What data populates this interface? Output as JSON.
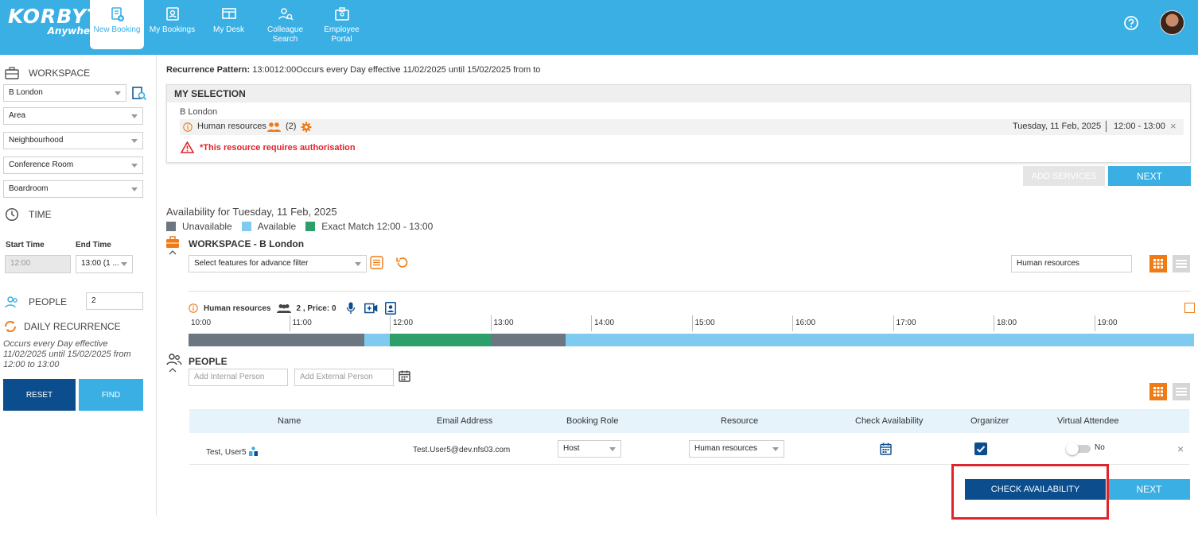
{
  "brand": {
    "name": "KORBYT",
    "sub": "Anywhere"
  },
  "nav": [
    {
      "label": "New Booking",
      "icon": "new-booking-icon"
    },
    {
      "label": "My Bookings",
      "icon": "my-bookings-icon"
    },
    {
      "label": "My Desk",
      "icon": "desk-icon"
    },
    {
      "label": "Colleague Search",
      "icon": "colleague-search-icon"
    },
    {
      "label": "Employee Portal",
      "icon": "employee-portal-icon"
    }
  ],
  "sidebar": {
    "workspace_title": "WORKSPACE",
    "location": "B London",
    "area": "Area",
    "neighbourhood": "Neighbourhood",
    "room_type": "Conference Room",
    "room": "Boardroom",
    "time_title": "TIME",
    "start_label": "Start Time",
    "end_label": "End Time",
    "start_value": "12:00",
    "end_value": "13:00 (1 ...",
    "people_title": "PEOPLE",
    "people_count": "2",
    "recurrence_title": "DAILY RECURRENCE",
    "recurrence_text": "Occurs every Day effective 11/02/2025 until 15/02/2025 from 12:00 to 13:00",
    "reset_label": "RESET",
    "find_label": "FIND"
  },
  "recurrence_pattern": {
    "label": "Recurrence Pattern:",
    "value": "13:0012:00Occurs every Day effective 11/02/2025 until 15/02/2025 from to"
  },
  "my_selection": {
    "title": "MY SELECTION",
    "location": "B London",
    "resource": "Human resources",
    "count": "(2)",
    "date": "Tuesday, 11 Feb, 2025",
    "time": "12:00 - 13:00",
    "warning": "*This resource requires authorisation",
    "add_services": "ADD SERVICES",
    "next": "NEXT"
  },
  "availability": {
    "title": "Availability for Tuesday, 11 Feb, 2025",
    "legend": [
      {
        "label": "Unavailable",
        "color": "#6b7680"
      },
      {
        "label": "Available",
        "color": "#7fcbf0"
      },
      {
        "label": "Exact Match 12:00 - 13:00",
        "color": "#2e9e6b"
      }
    ],
    "workspace_title": "WORKSPACE - B London",
    "filter_placeholder": "Select features for advance filter",
    "search_value": "Human resources",
    "resource_name": "Human resources",
    "resource_meta": "2 , Price: 0",
    "times": [
      "10:00",
      "11:00",
      "12:00",
      "13:00",
      "14:00",
      "15:00",
      "16:00",
      "17:00",
      "18:00",
      "19:00"
    ],
    "segments": [
      {
        "state": "unavailable",
        "start": "10:00",
        "end": "11:45"
      },
      {
        "state": "available",
        "start": "11:45",
        "end": "12:00"
      },
      {
        "state": "exact",
        "start": "12:00",
        "end": "13:00"
      },
      {
        "state": "unavailable",
        "start": "13:00",
        "end": "13:45"
      },
      {
        "state": "available",
        "start": "13:45",
        "end": "20:00"
      }
    ]
  },
  "people": {
    "title": "PEOPLE",
    "internal_placeholder": "Add Internal Person",
    "external_placeholder": "Add External Person",
    "columns": [
      "Name",
      "Email Address",
      "Booking Role",
      "Resource",
      "Check Availability",
      "Organizer",
      "Virtual Attendee"
    ],
    "rows": [
      {
        "name": "Test, User5",
        "email": "Test.User5@dev.nfs03.com",
        "role": "Host",
        "resource": "Human resources",
        "organizer": true,
        "virtual": "No"
      }
    ],
    "check_availability": "CHECK AVAILABILITY",
    "next": "NEXT"
  }
}
